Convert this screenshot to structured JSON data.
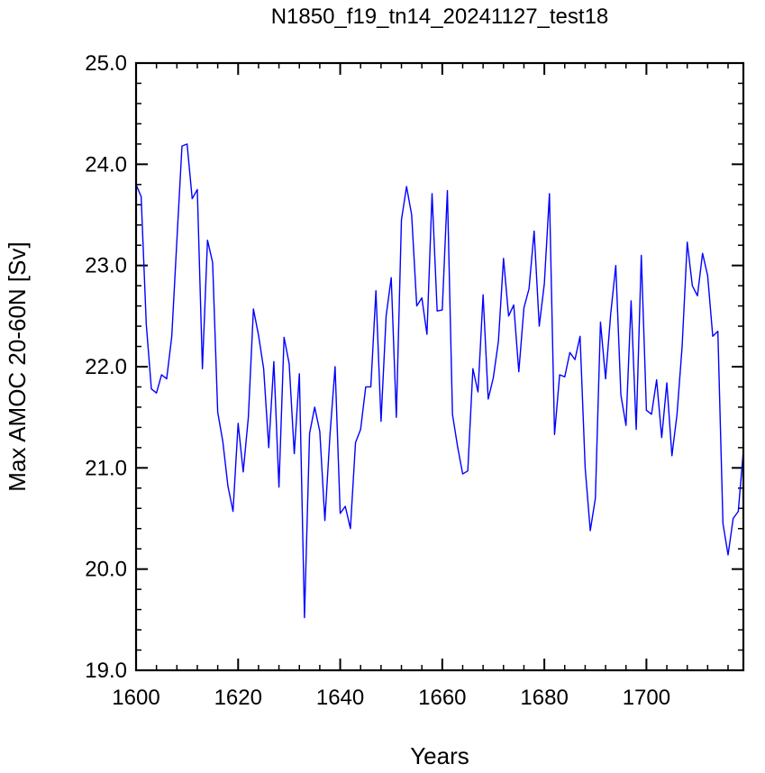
{
  "chart_data": {
    "type": "line",
    "title": "N1850_f19_tn14_20241127_test18",
    "xlabel": "Years",
    "ylabel": "Max AMOC 20-60N [Sv]",
    "xlim": [
      1600,
      1719
    ],
    "ylim": [
      19.0,
      25.0
    ],
    "xticks": [
      1600,
      1620,
      1640,
      1660,
      1680,
      1700
    ],
    "xtick_labels": [
      "1600",
      "1620",
      "1640",
      "1660",
      "1680",
      "1700"
    ],
    "yticks": [
      19.0,
      20.0,
      21.0,
      22.0,
      23.0,
      24.0,
      25.0
    ],
    "ytick_labels": [
      "19.0",
      "20.0",
      "21.0",
      "22.0",
      "23.0",
      "24.0",
      "25.0"
    ],
    "grid": false,
    "line_color": "#0000ff",
    "series": [
      {
        "x": [
          1600,
          1601,
          1602,
          1603,
          1604,
          1605,
          1606,
          1607,
          1608,
          1609,
          1610,
          1611,
          1612,
          1613,
          1614,
          1615,
          1616,
          1617,
          1618,
          1619,
          1620,
          1621,
          1622,
          1623,
          1624,
          1625,
          1626,
          1627,
          1628,
          1629,
          1630,
          1631,
          1632,
          1633,
          1634,
          1635,
          1636,
          1637,
          1638,
          1639,
          1640,
          1641,
          1642,
          1643,
          1644,
          1645,
          1646,
          1647,
          1648,
          1649,
          1650,
          1651,
          1652,
          1653,
          1654,
          1655,
          1656,
          1657,
          1658,
          1659,
          1660,
          1661,
          1662,
          1663,
          1664,
          1665,
          1666,
          1667,
          1668,
          1669,
          1670,
          1671,
          1672,
          1673,
          1674,
          1675,
          1676,
          1677,
          1678,
          1679,
          1680,
          1681,
          1682,
          1683,
          1684,
          1685,
          1686,
          1687,
          1688,
          1689,
          1690,
          1691,
          1692,
          1693,
          1694,
          1695,
          1696,
          1697,
          1698,
          1699,
          1700,
          1701,
          1702,
          1703,
          1704,
          1705,
          1706,
          1707,
          1708,
          1709,
          1710,
          1711,
          1712,
          1713,
          1714,
          1715,
          1716,
          1717,
          1718,
          1719
        ],
        "values": [
          23.8,
          23.68,
          22.42,
          21.78,
          21.74,
          21.92,
          21.88,
          22.3,
          23.25,
          24.18,
          24.2,
          23.66,
          23.75,
          21.98,
          23.25,
          23.03,
          21.55,
          21.26,
          20.82,
          20.57,
          21.44,
          20.96,
          21.5,
          22.57,
          22.31,
          21.98,
          21.2,
          22.05,
          20.81,
          22.29,
          22.03,
          21.14,
          21.93,
          19.52,
          21.34,
          21.6,
          21.36,
          20.48,
          21.33,
          22.0,
          20.55,
          20.62,
          20.4,
          21.25,
          21.38,
          21.8,
          21.8,
          22.75,
          21.46,
          22.5,
          22.88,
          21.5,
          23.45,
          23.78,
          23.5,
          22.6,
          22.68,
          22.32,
          23.71,
          22.55,
          22.56,
          23.74,
          21.53,
          21.21,
          20.94,
          20.97,
          21.98,
          21.75,
          22.71,
          21.68,
          21.89,
          22.25,
          23.07,
          22.5,
          22.61,
          21.95,
          22.58,
          22.77,
          23.34,
          22.4,
          22.82,
          23.71,
          21.33,
          21.92,
          21.9,
          22.14,
          22.07,
          22.3,
          21.0,
          20.38,
          20.7,
          22.44,
          21.88,
          22.52,
          23.0,
          21.72,
          21.42,
          22.65,
          21.38,
          23.1,
          21.57,
          21.53,
          21.87,
          21.3,
          21.84,
          21.12,
          21.53,
          22.2,
          23.23,
          22.8,
          22.7,
          23.12,
          22.9,
          22.3,
          22.35,
          20.45,
          20.14,
          20.5,
          20.57,
          21.17
        ]
      }
    ]
  }
}
